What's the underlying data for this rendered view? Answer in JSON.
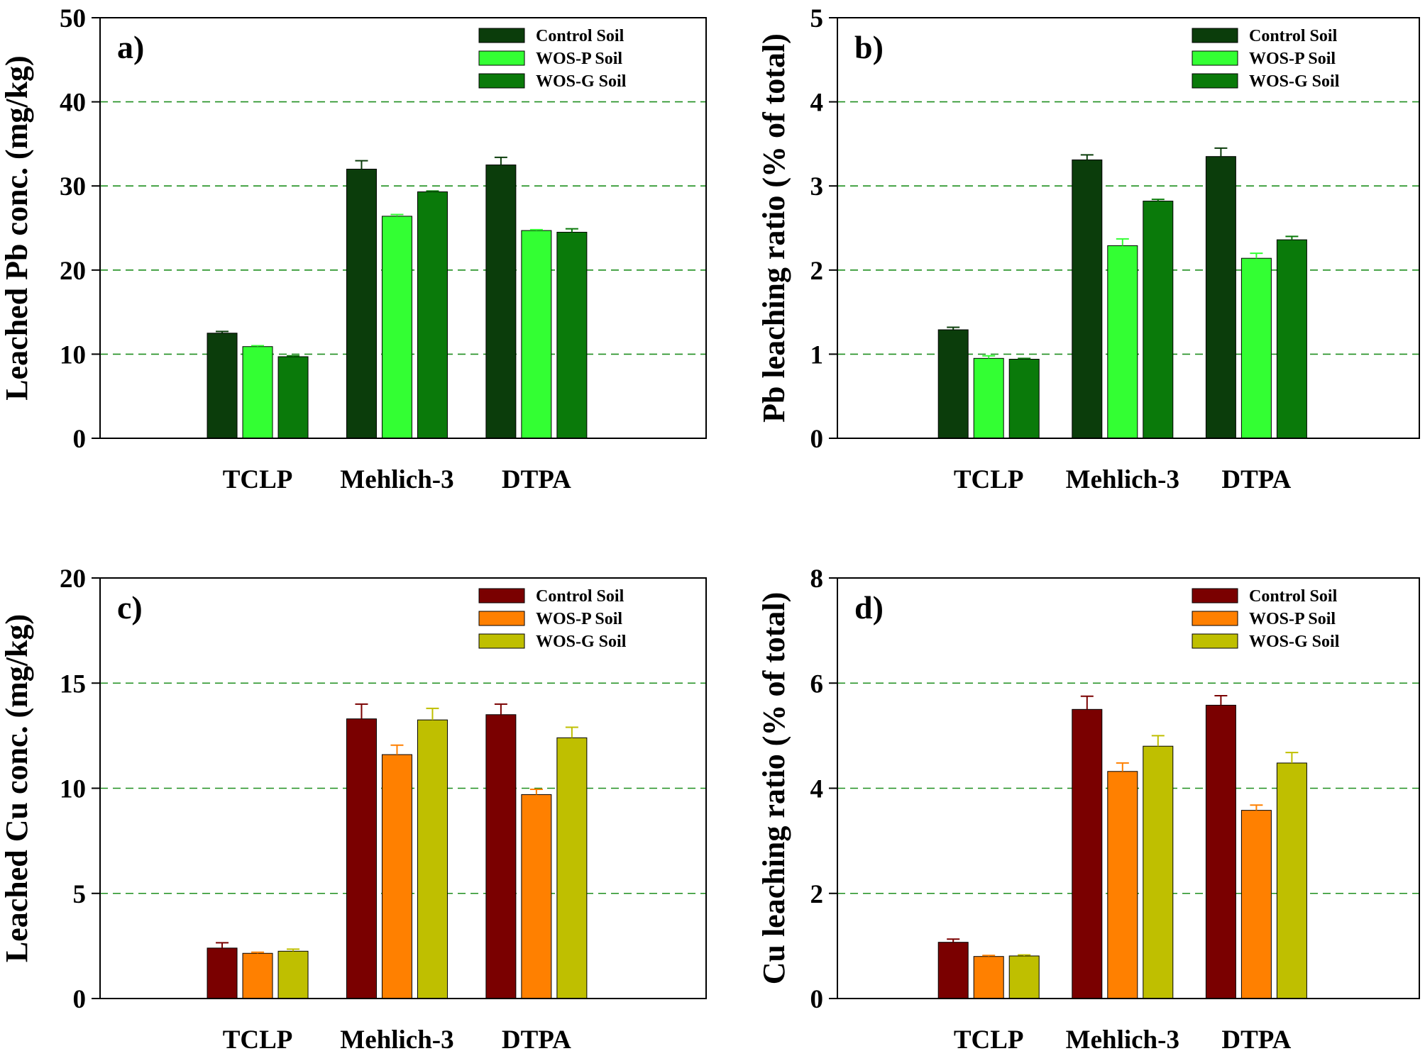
{
  "chart_data": [
    {
      "type": "bar",
      "panel_label": "a)",
      "ylabel": "Leached Pb conc. (mg/kg)",
      "categories": [
        "TCLP",
        "Mehlich-3",
        "DTPA"
      ],
      "ylim": [
        0,
        50
      ],
      "yticks": [
        0,
        10,
        20,
        30,
        40,
        50
      ],
      "gridlines": [
        10,
        20,
        30,
        40
      ],
      "legend_position": "top-right",
      "series": [
        {
          "name": "Control Soil",
          "color": "#0b3d0b",
          "values": [
            12.5,
            32.0,
            32.5
          ],
          "errors": [
            0.2,
            1.0,
            0.9
          ]
        },
        {
          "name": "WOS-P Soil",
          "color": "#33ff33",
          "values": [
            10.9,
            26.4,
            24.7
          ],
          "errors": [
            0.1,
            0.2,
            0.1
          ]
        },
        {
          "name": "WOS-G Soil",
          "color": "#0a7a0a",
          "values": [
            9.7,
            29.3,
            24.5
          ],
          "errors": [
            0.1,
            0.1,
            0.4
          ]
        }
      ]
    },
    {
      "type": "bar",
      "panel_label": "b)",
      "ylabel": "Pb leaching ratio (% of total)",
      "categories": [
        "TCLP",
        "Mehlich-3",
        "DTPA"
      ],
      "ylim": [
        0,
        5
      ],
      "yticks": [
        0,
        1,
        2,
        3,
        4,
        5
      ],
      "gridlines": [
        1,
        2,
        3,
        4
      ],
      "legend_position": "top-right",
      "series": [
        {
          "name": "Control Soil",
          "color": "#0b3d0b",
          "values": [
            1.29,
            3.31,
            3.35
          ],
          "errors": [
            0.03,
            0.06,
            0.1
          ]
        },
        {
          "name": "WOS-P Soil",
          "color": "#33ff33",
          "values": [
            0.95,
            2.29,
            2.14
          ],
          "errors": [
            0.03,
            0.08,
            0.06
          ]
        },
        {
          "name": "WOS-G Soil",
          "color": "#0a7a0a",
          "values": [
            0.94,
            2.82,
            2.36
          ],
          "errors": [
            0.01,
            0.02,
            0.04
          ]
        }
      ]
    },
    {
      "type": "bar",
      "panel_label": "c)",
      "ylabel": "Leached Cu conc. (mg/kg)",
      "categories": [
        "TCLP",
        "Mehlich-3",
        "DTPA"
      ],
      "ylim": [
        0,
        20
      ],
      "yticks": [
        0,
        5,
        10,
        15,
        20
      ],
      "gridlines": [
        5,
        10,
        15
      ],
      "legend_position": "top-right",
      "series": [
        {
          "name": "Control Soil",
          "color": "#7a0000",
          "values": [
            2.4,
            13.3,
            13.5
          ],
          "errors": [
            0.25,
            0.7,
            0.5
          ]
        },
        {
          "name": "WOS-P Soil",
          "color": "#ff8000",
          "values": [
            2.15,
            11.6,
            9.7
          ],
          "errors": [
            0.05,
            0.45,
            0.25
          ]
        },
        {
          "name": "WOS-G Soil",
          "color": "#bfbf00",
          "values": [
            2.25,
            13.25,
            12.4
          ],
          "errors": [
            0.1,
            0.55,
            0.5
          ]
        }
      ]
    },
    {
      "type": "bar",
      "panel_label": "d)",
      "ylabel": "Cu leaching ratio (% of total)",
      "categories": [
        "TCLP",
        "Mehlich-3",
        "DTPA"
      ],
      "ylim": [
        0,
        8
      ],
      "yticks": [
        0,
        2,
        4,
        6,
        8
      ],
      "gridlines": [
        2,
        4,
        6
      ],
      "legend_position": "top-right",
      "series": [
        {
          "name": "Control Soil",
          "color": "#7a0000",
          "values": [
            1.07,
            5.5,
            5.58
          ],
          "errors": [
            0.06,
            0.25,
            0.18
          ]
        },
        {
          "name": "WOS-P Soil",
          "color": "#ff8000",
          "values": [
            0.8,
            4.32,
            3.58
          ],
          "errors": [
            0.02,
            0.16,
            0.1
          ]
        },
        {
          "name": "WOS-G Soil",
          "color": "#bfbf00",
          "values": [
            0.81,
            4.8,
            4.48
          ],
          "errors": [
            0.02,
            0.2,
            0.2
          ]
        }
      ]
    }
  ]
}
